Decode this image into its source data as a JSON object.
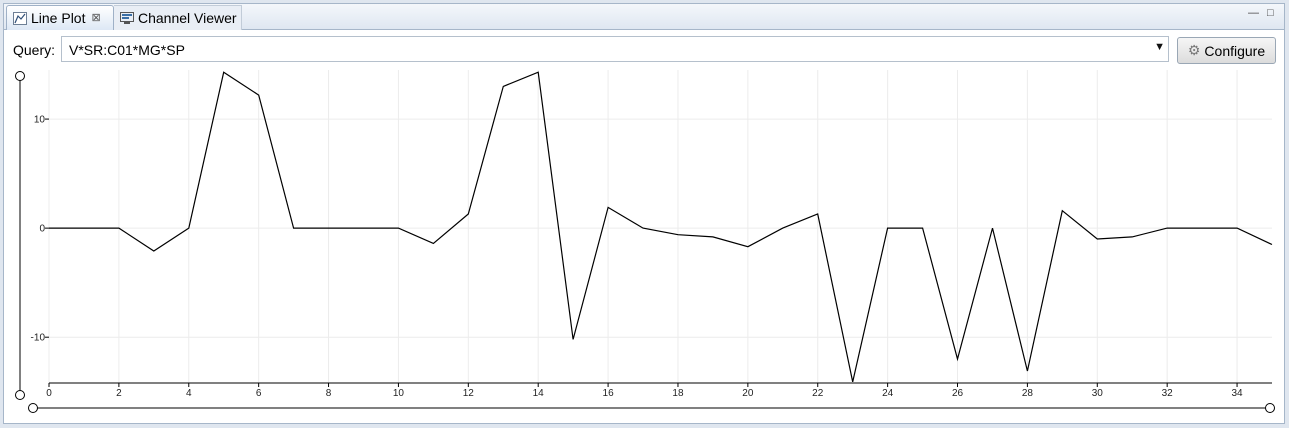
{
  "tabs": [
    {
      "label": "Line Plot",
      "icon": "line-plot-icon",
      "close": "⊠"
    },
    {
      "label": "Channel Viewer",
      "icon": "channel-viewer-icon"
    }
  ],
  "window_controls": {
    "minimize": "—",
    "maximize": "□"
  },
  "query": {
    "label": "Query:",
    "value": "V*SR:C01*MG*SP",
    "dropdown": "▼"
  },
  "configure": {
    "label": "Configure",
    "icon": "gear-icon"
  },
  "chart_data": {
    "type": "line",
    "title": "",
    "xlabel": "",
    "ylabel": "",
    "xlim": [
      0,
      35
    ],
    "ylim": [
      -14.2,
      14.5
    ],
    "x_ticks": [
      0,
      2,
      4,
      6,
      8,
      10,
      12,
      14,
      16,
      18,
      20,
      22,
      24,
      26,
      28,
      30,
      32,
      34
    ],
    "y_ticks": [
      -10,
      0,
      10
    ],
    "grid": true,
    "series": [
      {
        "color": "#000000",
        "x": [
          0,
          1,
          2,
          3,
          4,
          5,
          6,
          7,
          8,
          9,
          10,
          11,
          12,
          13,
          14,
          15,
          16,
          17,
          18,
          19,
          20,
          21,
          22,
          23,
          24,
          25,
          26,
          27,
          28,
          29,
          30,
          31,
          32,
          33,
          34,
          35
        ],
        "y": [
          0,
          0,
          0,
          -2.1,
          0,
          14.3,
          12.2,
          0,
          0,
          0,
          0,
          -1.4,
          1.3,
          13,
          14.3,
          -10.2,
          1.9,
          0,
          -0.6,
          -0.8,
          -1.7,
          0,
          1.3,
          -14.1,
          0,
          0,
          -12,
          0,
          -13.1,
          1.6,
          -1,
          -0.8,
          0,
          0,
          0,
          -1.5
        ]
      }
    ]
  }
}
